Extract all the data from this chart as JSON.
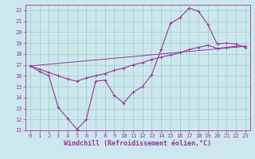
{
  "xlabel": "Windchill (Refroidissement éolien,°C)",
  "bg_color": "#cce8ee",
  "grid_color": "#99ccbb",
  "line_color": "#993399",
  "spine_color": "#993399",
  "tick_color": "#993399",
  "xlim": [
    -0.5,
    23.5
  ],
  "ylim": [
    11,
    22.5
  ],
  "xticks": [
    0,
    1,
    2,
    3,
    4,
    5,
    6,
    7,
    8,
    9,
    10,
    11,
    12,
    13,
    14,
    15,
    16,
    17,
    18,
    19,
    20,
    21,
    22,
    23
  ],
  "yticks": [
    11,
    12,
    13,
    14,
    15,
    16,
    17,
    18,
    19,
    20,
    21,
    22
  ],
  "line1_x": [
    0,
    1,
    2,
    3,
    4,
    5,
    6,
    7,
    8,
    9,
    10,
    11,
    12,
    13,
    14,
    15,
    16,
    17,
    18,
    19,
    20,
    21,
    22,
    23
  ],
  "line1_y": [
    16.9,
    16.4,
    16.0,
    13.1,
    12.1,
    11.1,
    12.0,
    15.5,
    15.6,
    14.2,
    13.5,
    14.5,
    15.0,
    16.1,
    18.4,
    20.8,
    21.3,
    22.2,
    21.9,
    20.7,
    18.9,
    19.0,
    18.9,
    18.6
  ],
  "line2_x": [
    0,
    1,
    2,
    3,
    4,
    5,
    6,
    7,
    8,
    9,
    10,
    11,
    12,
    13,
    14,
    15,
    16,
    17,
    18,
    19,
    20,
    21,
    22,
    23
  ],
  "line2_y": [
    16.9,
    16.6,
    16.3,
    16.0,
    15.7,
    15.5,
    15.8,
    16.0,
    16.2,
    16.5,
    16.7,
    17.0,
    17.2,
    17.5,
    17.7,
    17.9,
    18.1,
    18.4,
    18.6,
    18.8,
    18.5,
    18.6,
    18.7,
    18.7
  ],
  "line3_x": [
    0,
    23
  ],
  "line3_y": [
    16.9,
    18.7
  ],
  "xlabel_fontsize": 6,
  "tick_fontsize": 5
}
